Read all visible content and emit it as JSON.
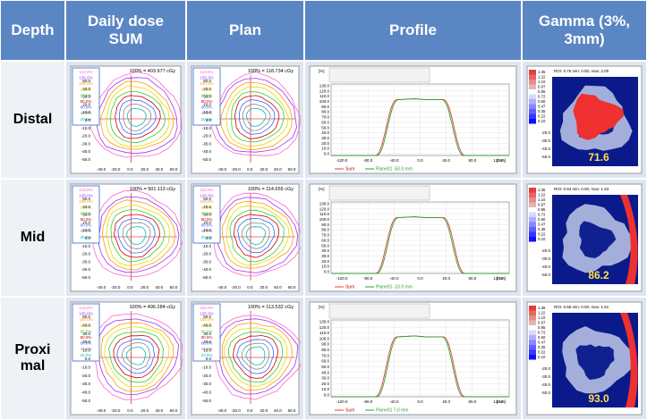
{
  "header": [
    "Depth",
    "Daily dose SUM",
    "Plan",
    "Profile",
    "Gamma (3%, 3mm)"
  ],
  "rows": [
    {
      "depth": "Distal",
      "sum_dose": "100% = 403.977 cGy",
      "plan_dose": "100% = 118.734 cGy",
      "profile_plane": "Plane01 -50.0 mm",
      "gamma_roi": "ROI: 0.76 min: 0.00, max: 2.00",
      "gamma_pass": "71.6"
    },
    {
      "depth": "Mid",
      "sum_dose": "100% = 501.113 cGy",
      "plan_dose": "100% = 114.655 cGy",
      "profile_plane": "Plane01 -10.0 mm",
      "gamma_roi": "ROI: 0.94 min: 0.00, max: 1.63",
      "gamma_pass": "86.2"
    },
    {
      "depth": "Proxi mal",
      "sum_dose": "100% = 496.284 cGy",
      "plan_dose": "100% = 113.532 cGy",
      "profile_plane": "Plane01 7.0 mm",
      "gamma_roi": "ROI: 0.58 min: 0.00, max: 1.81",
      "gamma_pass": "93.0"
    }
  ],
  "isodose": {
    "levels": [
      "110.0%",
      "105.0%",
      "100.0%",
      "95.0%",
      "90.0%",
      "80.0%",
      "60.0%",
      "40.0%",
      "20.0%"
    ],
    "xticks": [
      "-40.0",
      "-20.0",
      "0.0",
      "20.0",
      "40.0",
      "60.0"
    ],
    "yticks": [
      "50.0",
      "40.0",
      "30.0",
      "20.0",
      "10.0",
      "0.0",
      "-10.0",
      "-20.0",
      "-30.0",
      "-40.0",
      "-50.0"
    ]
  },
  "profile": {
    "sum": "Sum",
    "yunit": "[%]",
    "xunit": "[mm]",
    "yticks": [
      "130.0",
      "120.0",
      "110.0",
      "100.0",
      "90.0",
      "80.0",
      "70.0",
      "60.0",
      "50.0",
      "40.0",
      "30.0",
      "20.0",
      "10.0",
      "0.0"
    ],
    "xticks": [
      "-120.0",
      "-80.0",
      "-40.0",
      "0.0",
      "40.0",
      "80.0",
      "120.0"
    ]
  },
  "gamma": {
    "scale": [
      "1.35",
      "1.22",
      "1.10",
      "0.97",
      "0.85",
      "0.72",
      "0.60",
      "0.47",
      "0.35",
      "0.22",
      "0.10"
    ],
    "yticks": [
      "-20.0",
      "-30.0",
      "-40.0",
      "-50.0"
    ]
  }
}
